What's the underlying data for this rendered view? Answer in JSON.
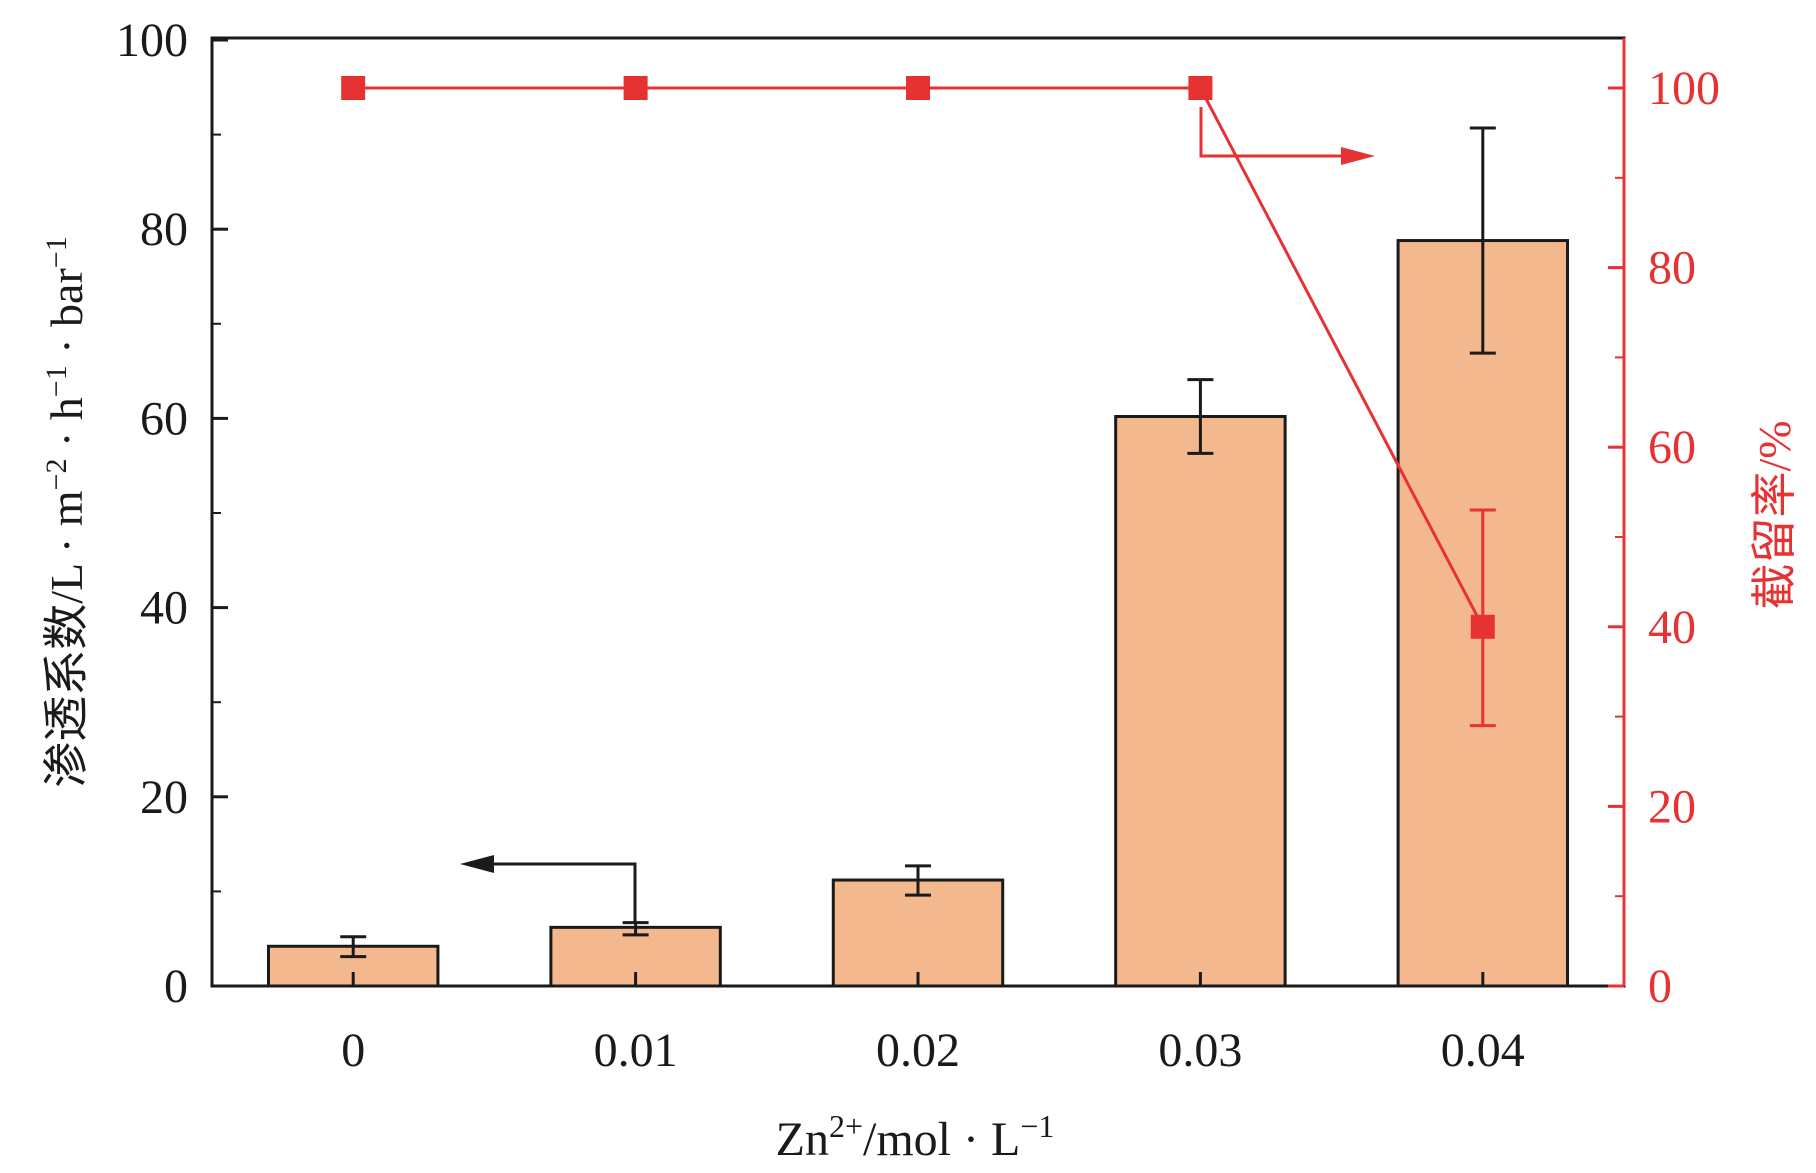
{
  "chart_data": {
    "type": "bar",
    "categories": [
      "0",
      "0.01",
      "0.02",
      "0.03",
      "0.04"
    ],
    "xlabel": {
      "base": "Zn",
      "sup": "2+",
      "mid": "/mol · L",
      "sup2": "−1"
    },
    "left_axis": {
      "label": {
        "main": "渗透系数/L · m",
        "s1": "−2",
        "t2": " · h",
        "s2": "−1",
        "t3": " · bar",
        "s3": "−1"
      },
      "range": [
        0,
        100
      ],
      "ticks": [
        0,
        20,
        40,
        60,
        80,
        100
      ],
      "color": "#1a1a1a"
    },
    "right_axis": {
      "label": "截留率/%",
      "range": [
        0,
        100
      ],
      "ticks": [
        0,
        20,
        40,
        60,
        80,
        100
      ],
      "color": "#e63232"
    },
    "bars": {
      "values": [
        4.2,
        6.2,
        11.2,
        60.2,
        78.8
      ],
      "errors": [
        [
          3.1,
          5.2
        ],
        [
          5.4,
          6.7
        ],
        [
          9.6,
          12.7
        ],
        [
          56.3,
          64.1
        ],
        [
          66.9,
          90.7
        ]
      ],
      "fill": "#f4b88e",
      "stroke": "#1a1a1a",
      "axis": "left"
    },
    "line": {
      "values": [
        100,
        100,
        100,
        100,
        40
      ],
      "errors": [
        null,
        null,
        null,
        null,
        [
          29,
          53
        ]
      ],
      "color": "#e63232",
      "axis": "right"
    }
  }
}
